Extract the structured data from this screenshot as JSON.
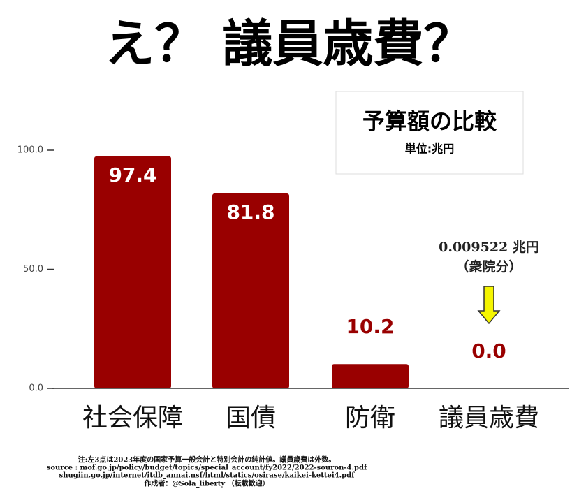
{
  "chart_data": {
    "type": "bar",
    "title": "え？ 議員歳費？",
    "box_title": "予算額の比較",
    "unit": "単位:兆円",
    "annotations": [
      "0.009522 兆円",
      "（衆院分）"
    ],
    "categories": [
      "社会保障",
      "国債",
      "防衛",
      "議員歳費"
    ],
    "values": [
      97.4,
      81.8,
      10.2,
      0.009522
    ],
    "value_labels": [
      "97.4",
      "81.8",
      "10.2",
      "0.0"
    ],
    "color": "#990000",
    "ylim": [
      0,
      100
    ],
    "yticks": [
      {
        "value": 0,
        "label": "0.0"
      },
      {
        "value": 50,
        "label": "50.0"
      },
      {
        "value": 100,
        "label": "100.0"
      }
    ],
    "footnotes": [
      "注:左3点は2023年度の国家予算一般会計と特別会計の純計値。議員歳費は外数。",
      "source : mof.go.jp/policy/budget/topics/special_account/fy2022/2022-souron-4.pdf",
      "shugiin.go.jp/internet/itdb_annai.nsf/html/statics/osirase/kaikei-kettei4.pdf",
      "作成者：@Sola_liberty （転載歓迎）"
    ]
  }
}
